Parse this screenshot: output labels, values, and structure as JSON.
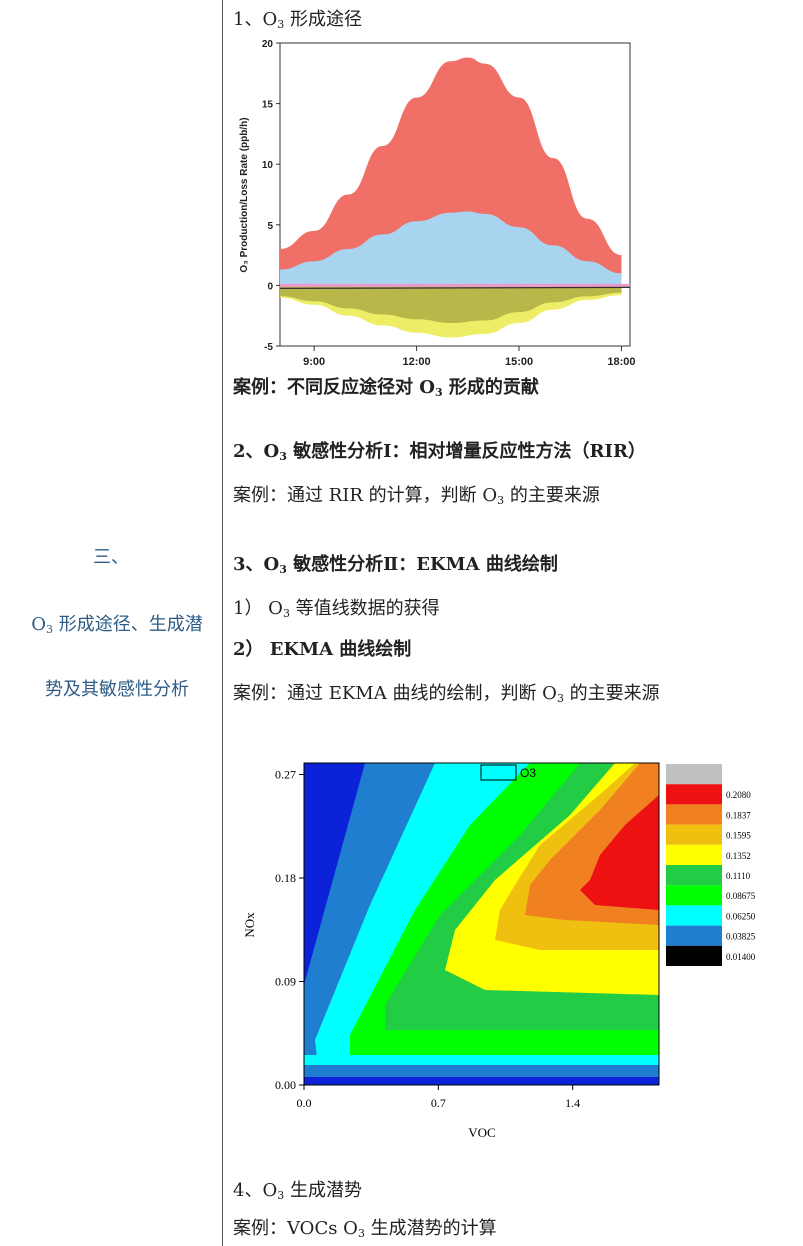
{
  "left": {
    "section_number": "三、",
    "title_line1_pre": "O",
    "title_line1_sub": "3",
    "title_line1_post": " 形成途径、生成潜",
    "title_line2": "势及其敏感性分析"
  },
  "items": {
    "h1_pre": "1、O",
    "h1_sub": "3",
    "h1_post": " 形成途径",
    "case1_pre": "案例：不同反应途径对 O",
    "case1_sub": "3",
    "case1_post": " 形成的贡献",
    "h2_pre": "2、O",
    "h2_sub": "3",
    "h2_post": " 敏感性分析Ⅰ：相对增量反应性方法（RIR）",
    "case2_pre": "案例：通过 RIR 的计算，判断 O",
    "case2_sub": "3",
    "case2_post": " 的主要来源",
    "h3_pre": "3、O",
    "h3_sub": "3",
    "h3_post": " 敏感性分析Ⅱ：EKMA 曲线绘制",
    "s1_pre": "1） O",
    "s1_sub": "3",
    "s1_post": " 等值线数据的获得",
    "s2": "2） EKMA 曲线绘制",
    "case3_pre": "案例：通过 EKMA 曲线的绘制，判断 O",
    "case3_sub": "3",
    "case3_post": " 的主要来源",
    "h4_pre": "4、O",
    "h4_sub": "3",
    "h4_post": " 生成潜势",
    "case4_pre": "案例：VOCs O",
    "case4_sub": "3",
    "case4_post": " 生成潜势的计算"
  },
  "chart_data": [
    {
      "type": "area",
      "ylabel": "O₃ Production/Loss Rate (ppb/h)",
      "xlabel": "",
      "x_ticks": [
        "9:00",
        "12:00",
        "15:00",
        "18:00"
      ],
      "y_ticks": [
        "-5",
        "0",
        "5",
        "10",
        "15",
        "20"
      ],
      "ylim": [
        -5,
        20
      ],
      "xlim_hours": [
        8,
        18.25
      ],
      "colors": {
        "red": "#f07068",
        "blue": "#a8d4f0",
        "pink": "#ee99cc",
        "dark": "#333333",
        "olive": "#b8b84a",
        "yellow": "#eeee66"
      },
      "series": [
        {
          "hours": [
            8,
            9,
            10,
            11,
            12,
            13,
            13.5,
            14,
            15,
            16,
            17,
            18
          ],
          "values": [
            3,
            4.5,
            7.5,
            11.5,
            15.5,
            18.5,
            18.8,
            18.3,
            15.5,
            10.5,
            5.5,
            2.5
          ]
        },
        {
          "hours": [
            8,
            9,
            10,
            11,
            12,
            13,
            13.5,
            14,
            15,
            16,
            17,
            18
          ],
          "values": [
            1.3,
            2,
            3,
            4.2,
            5.3,
            6,
            6.1,
            5.9,
            4.8,
            3.3,
            2,
            1
          ]
        },
        {
          "hours": [
            8,
            18
          ],
          "values": [
            0,
            0
          ]
        },
        {
          "hours": [
            8,
            9,
            10,
            11,
            12,
            13,
            14,
            15,
            16,
            17,
            18
          ],
          "values": [
            -0.9,
            -1.3,
            -1.9,
            -2.4,
            -2.8,
            -3.1,
            -2.9,
            -2.2,
            -1.4,
            -0.9,
            -0.6
          ]
        },
        {
          "hours": [
            8,
            9,
            10,
            11,
            12,
            13,
            14,
            15,
            16,
            17,
            18
          ],
          "values": [
            -1.0,
            -1.6,
            -2.5,
            -3.3,
            -3.9,
            -4.3,
            -4.0,
            -3.1,
            -2.0,
            -1.2,
            -0.8
          ]
        }
      ]
    },
    {
      "type": "heatmap",
      "title": "O3",
      "xlabel": "VOC",
      "ylabel": "NOx",
      "x_ticks": [
        "0.0",
        "0.7",
        "1.4"
      ],
      "y_ticks": [
        "0.00",
        "0.09",
        "0.18",
        "0.27"
      ],
      "xlim": [
        0,
        1.85
      ],
      "ylim": [
        0,
        0.28
      ],
      "legend": [
        {
          "label": "",
          "color": "#c0c0c0"
        },
        {
          "label": "0.2080",
          "color": "#ee1111"
        },
        {
          "label": "0.1837",
          "color": "#f08020"
        },
        {
          "label": "0.1595",
          "color": "#f0c010"
        },
        {
          "label": "0.1352",
          "color": "#ffff00"
        },
        {
          "label": "0.1110",
          "color": "#22cc44"
        },
        {
          "label": "0.08675",
          "color": "#00ff00"
        },
        {
          "label": "0.06250",
          "color": "#00ffff"
        },
        {
          "label": "0.03825",
          "color": "#1f7ed0"
        },
        {
          "label": "0.01400",
          "color": "#000000"
        }
      ]
    }
  ]
}
